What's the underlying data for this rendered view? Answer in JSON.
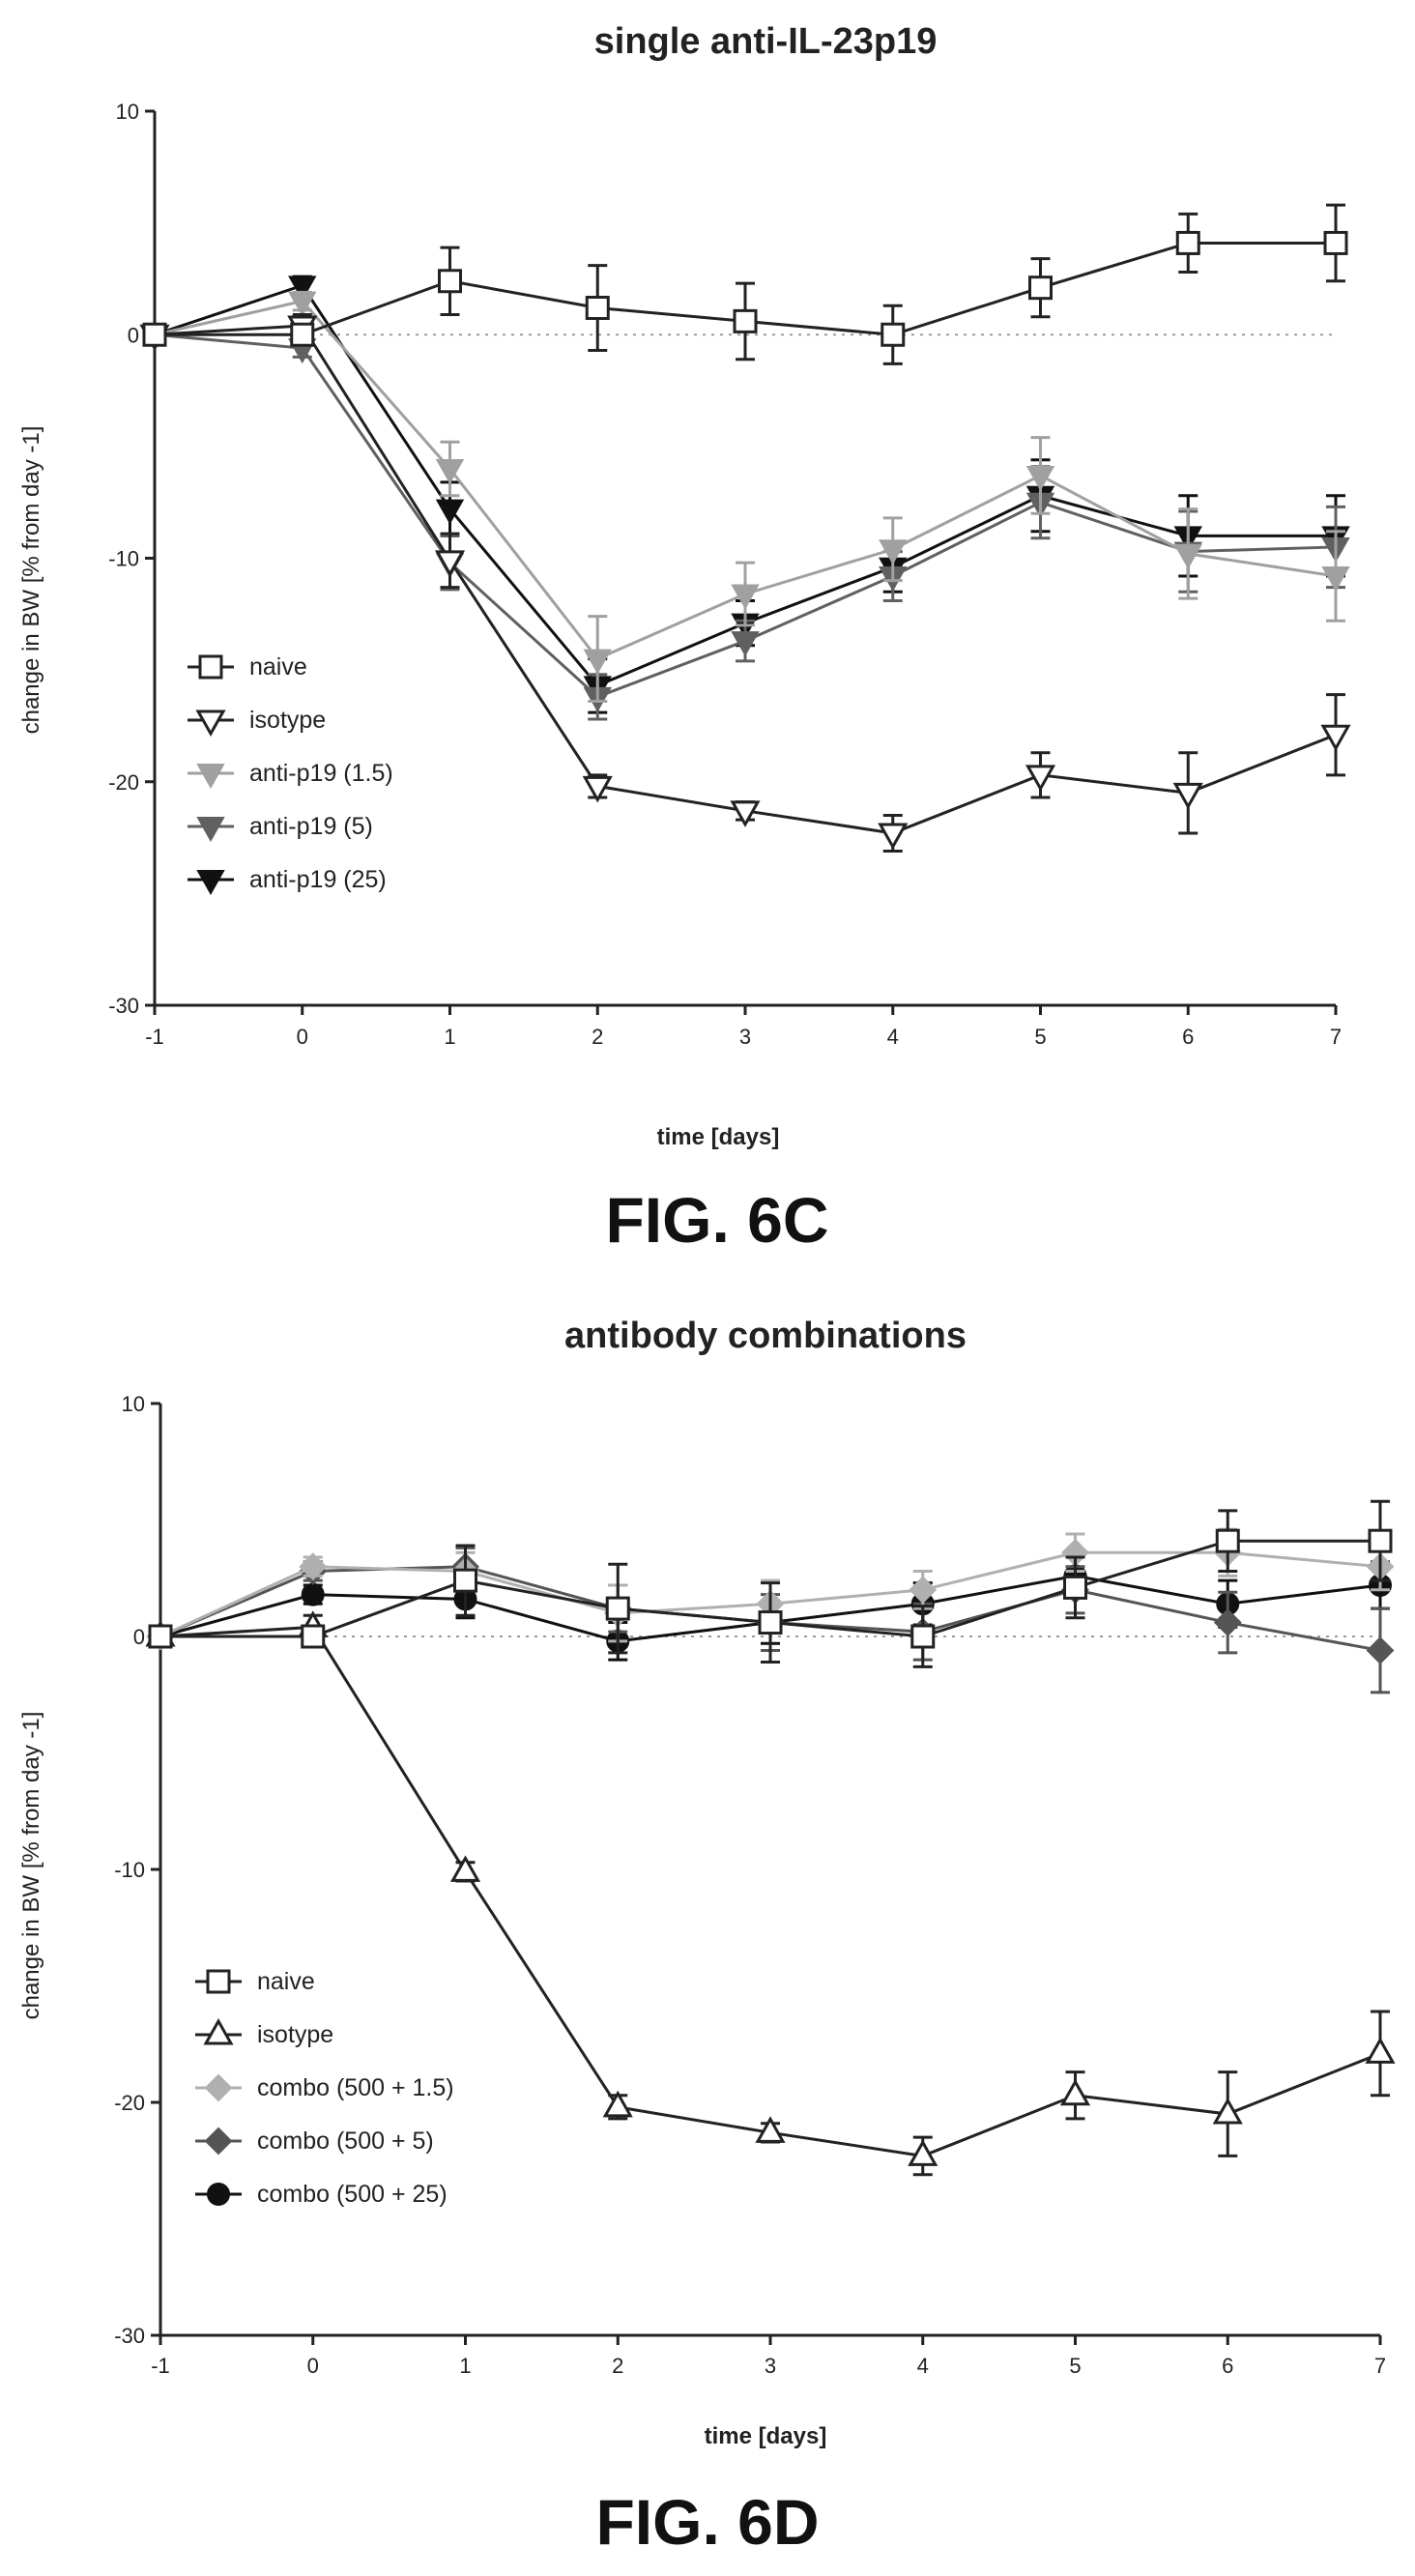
{
  "figures": [
    {
      "caption": "FIG. 6C"
    },
    {
      "caption": "FIG. 6D"
    }
  ],
  "chart_data": [
    {
      "type": "line",
      "title": "single anti-IL-23p19",
      "xlabel": "time [days]",
      "ylabel": "change in BW [% from day -1]",
      "x": [
        -1,
        0,
        1,
        2,
        3,
        4,
        5,
        6,
        7
      ],
      "xlim": [
        -1,
        7
      ],
      "ylim": [
        -30,
        10
      ],
      "yticks": [
        10,
        0,
        -10,
        -20,
        -30
      ],
      "grid": false,
      "legend_position": "lower-left",
      "reference_line": 0,
      "series": [
        {
          "name": "naive",
          "marker": "open-square",
          "color": "#222222",
          "values": [
            0,
            0,
            2.4,
            1.2,
            0.6,
            0,
            2.1,
            4.1,
            4.1
          ],
          "errors": [
            0,
            0,
            1.5,
            1.9,
            1.7,
            1.3,
            1.3,
            1.3,
            1.7
          ]
        },
        {
          "name": "isotype",
          "marker": "open-triangle-down",
          "color": "#222222",
          "values": [
            0,
            0.4,
            -10.1,
            -20.2,
            -21.3,
            -22.3,
            -19.7,
            -20.5,
            -17.9
          ],
          "errors": [
            0,
            0.5,
            1.2,
            0.5,
            0.4,
            0.8,
            1.0,
            1.8,
            1.8
          ]
        },
        {
          "name": "anti-p19 (1.5)",
          "marker": "filled-triangle-down",
          "color": "#a0a0a0",
          "values": [
            0,
            1.5,
            -6.0,
            -14.5,
            -11.6,
            -9.6,
            -6.3,
            -9.8,
            -10.8
          ],
          "errors": [
            0,
            0.4,
            1.2,
            1.9,
            1.4,
            1.4,
            1.7,
            2.0,
            2.0
          ]
        },
        {
          "name": "anti-p19 (5)",
          "marker": "filled-triangle-down",
          "color": "#606060",
          "values": [
            0,
            -0.6,
            -10.2,
            -16.2,
            -13.7,
            -10.8,
            -7.5,
            -9.7,
            -9.5
          ],
          "errors": [
            0,
            0.4,
            1.2,
            1.0,
            0.9,
            1.1,
            1.6,
            1.8,
            1.8
          ]
        },
        {
          "name": "anti-p19 (25)",
          "marker": "filled-triangle-down",
          "color": "#111111",
          "values": [
            0,
            2.2,
            -7.8,
            -15.7,
            -12.9,
            -10.4,
            -7.2,
            -9.0,
            -9.0
          ],
          "errors": [
            0,
            0.4,
            1.2,
            1.2,
            1.0,
            1.1,
            1.6,
            1.8,
            1.8
          ]
        }
      ]
    },
    {
      "type": "line",
      "title": "antibody combinations",
      "xlabel": "time [days]",
      "ylabel": "change in BW [% from day -1]",
      "x": [
        -1,
        0,
        1,
        2,
        3,
        4,
        5,
        6,
        7
      ],
      "xlim": [
        -1,
        7
      ],
      "ylim": [
        -30,
        10
      ],
      "yticks": [
        10,
        0,
        -10,
        -20,
        -30
      ],
      "grid": false,
      "legend_position": "lower-left",
      "reference_line": 0,
      "series": [
        {
          "name": "naive",
          "marker": "open-square",
          "color": "#222222",
          "values": [
            0,
            0,
            2.4,
            1.2,
            0.6,
            0,
            2.1,
            4.1,
            4.1
          ],
          "errors": [
            0,
            0,
            1.5,
            1.9,
            1.7,
            1.3,
            1.3,
            1.3,
            1.7
          ]
        },
        {
          "name": "isotype",
          "marker": "open-triangle-up",
          "color": "#222222",
          "values": [
            0,
            0.4,
            -10.1,
            -20.2,
            -21.3,
            -22.3,
            -19.7,
            -20.5,
            -17.9
          ],
          "errors": [
            0,
            0.5,
            0.4,
            0.5,
            0.4,
            0.8,
            1.0,
            1.8,
            1.8
          ]
        },
        {
          "name": "combo (500 + 1.5)",
          "marker": "filled-diamond",
          "color": "#b0b0b0",
          "values": [
            0,
            3.0,
            2.8,
            1.0,
            1.4,
            2.0,
            3.6,
            3.6,
            3.0
          ],
          "errors": [
            0,
            0.4,
            0.8,
            1.2,
            1.0,
            0.8,
            0.8,
            1.0,
            1.0
          ]
        },
        {
          "name": "combo (500 + 5)",
          "marker": "filled-diamond",
          "color": "#555555",
          "values": [
            0,
            2.8,
            3.0,
            1.2,
            0.6,
            0.2,
            2.0,
            0.6,
            -0.6
          ],
          "errors": [
            0,
            0.4,
            0.8,
            1.0,
            1.2,
            1.2,
            1.0,
            1.3,
            1.8
          ]
        },
        {
          "name": "combo (500 + 25)",
          "marker": "filled-circle",
          "color": "#111111",
          "values": [
            0,
            1.8,
            1.6,
            -0.2,
            0.6,
            1.4,
            2.6,
            1.4,
            2.2
          ],
          "errors": [
            0,
            0.4,
            0.8,
            0.8,
            0.9,
            0.9,
            0.9,
            1.0,
            1.0
          ]
        }
      ]
    }
  ]
}
